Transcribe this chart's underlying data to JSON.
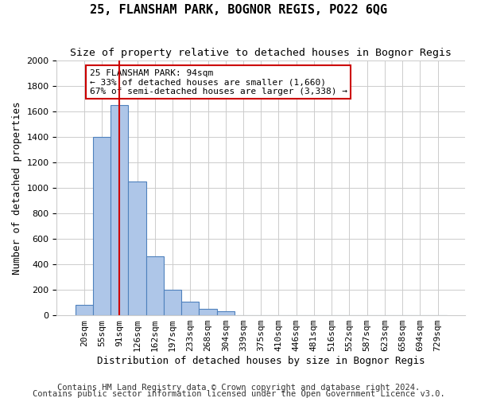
{
  "title": "25, FLANSHAM PARK, BOGNOR REGIS, PO22 6QG",
  "subtitle": "Size of property relative to detached houses in Bognor Regis",
  "xlabel": "Distribution of detached houses by size in Bognor Regis",
  "ylabel": "Number of detached properties",
  "footnote1": "Contains HM Land Registry data © Crown copyright and database right 2024.",
  "footnote2": "Contains public sector information licensed under the Open Government Licence v3.0.",
  "bin_labels": [
    "20sqm",
    "55sqm",
    "91sqm",
    "126sqm",
    "162sqm",
    "197sqm",
    "233sqm",
    "268sqm",
    "304sqm",
    "339sqm",
    "375sqm",
    "410sqm",
    "446sqm",
    "481sqm",
    "516sqm",
    "552sqm",
    "587sqm",
    "623sqm",
    "658sqm",
    "694sqm",
    "729sqm"
  ],
  "bar_values": [
    80,
    1400,
    1650,
    1050,
    460,
    200,
    105,
    50,
    30,
    0,
    0,
    0,
    0,
    0,
    0,
    0,
    0,
    0,
    0,
    0,
    0
  ],
  "bar_color": "#aec6e8",
  "bar_edge_color": "#4f81bd",
  "ylim": [
    0,
    2000
  ],
  "yticks": [
    0,
    200,
    400,
    600,
    800,
    1000,
    1200,
    1400,
    1600,
    1800,
    2000
  ],
  "property_bin_index": 2,
  "vline_color": "#cc0000",
  "annotation_text": "25 FLANSHAM PARK: 94sqm\n← 33% of detached houses are smaller (1,660)\n67% of semi-detached houses are larger (3,338) →",
  "annotation_box_color": "#ffffff",
  "annotation_box_edge": "#cc0000",
  "title_fontsize": 11,
  "subtitle_fontsize": 9.5,
  "axis_label_fontsize": 9,
  "tick_fontsize": 8,
  "footnote_fontsize": 7.5,
  "background_color": "#ffffff",
  "grid_color": "#cccccc"
}
